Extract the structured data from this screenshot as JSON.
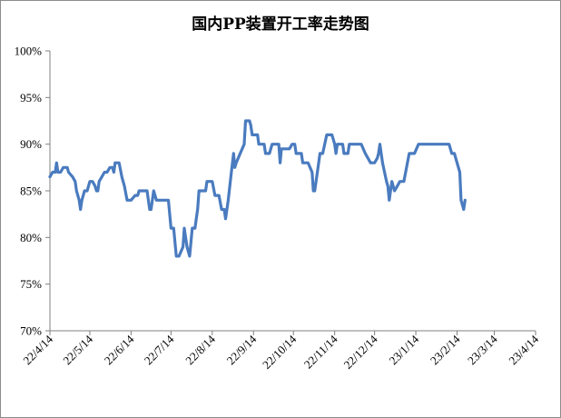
{
  "chart_data": {
    "type": "line",
    "title": "国内PP装置开工率走势图",
    "xlabel": "",
    "ylabel": "",
    "ylim": [
      70,
      100
    ],
    "y_ticks": [
      "70%",
      "75%",
      "80%",
      "85%",
      "90%",
      "95%",
      "100%"
    ],
    "x_ticks": [
      "22/4/14",
      "22/5/14",
      "22/6/14",
      "22/7/14",
      "22/8/14",
      "22/9/14",
      "22/10/14",
      "22/11/14",
      "22/12/14",
      "23/1/14",
      "23/2/14",
      "23/3/14",
      "23/4/14"
    ],
    "grid": false,
    "legend": "none",
    "line_color": "#4a7bbf",
    "series": [
      {
        "points": [
          [
            "22/4/14",
            86.5
          ],
          [
            "22/4/16",
            87.0
          ],
          [
            "22/4/18",
            87.0
          ],
          [
            "22/4/19",
            88.0
          ],
          [
            "22/4/20",
            87.0
          ],
          [
            "22/4/22",
            87.0
          ],
          [
            "22/4/24",
            87.5
          ],
          [
            "22/4/27",
            87.5
          ],
          [
            "22/4/28",
            87.0
          ],
          [
            "22/5/1",
            86.5
          ],
          [
            "22/5/3",
            86.0
          ],
          [
            "22/5/4",
            85.0
          ],
          [
            "22/5/6",
            84.0
          ],
          [
            "22/5/7",
            83.0
          ],
          [
            "22/5/8",
            84.0
          ],
          [
            "22/5/10",
            85.0
          ],
          [
            "22/5/12",
            85.0
          ],
          [
            "22/5/14",
            86.0
          ],
          [
            "22/5/16",
            86.0
          ],
          [
            "22/5/18",
            85.5
          ],
          [
            "22/5/19",
            85.0
          ],
          [
            "22/5/20",
            85.0
          ],
          [
            "22/5/21",
            86.0
          ],
          [
            "22/5/23",
            86.5
          ],
          [
            "22/5/25",
            87.0
          ],
          [
            "22/5/27",
            87.0
          ],
          [
            "22/5/29",
            87.5
          ],
          [
            "22/5/31",
            87.5
          ],
          [
            "22/6/1",
            87.0
          ],
          [
            "22/6/2",
            88.0
          ],
          [
            "22/6/5",
            88.0
          ],
          [
            "22/6/7",
            86.5
          ],
          [
            "22/6/9",
            85.5
          ],
          [
            "22/6/11",
            84.0
          ],
          [
            "22/6/14",
            84.0
          ],
          [
            "22/6/17",
            84.5
          ],
          [
            "22/6/19",
            84.5
          ],
          [
            "22/6/20",
            85.0
          ],
          [
            "22/6/26",
            85.0
          ],
          [
            "22/6/28",
            83.0
          ],
          [
            "22/6/29",
            83.0
          ],
          [
            "22/7/1",
            85.0
          ],
          [
            "22/7/3",
            84.0
          ],
          [
            "22/7/12",
            84.0
          ],
          [
            "22/7/14",
            81.0
          ],
          [
            "22/7/16",
            81.0
          ],
          [
            "22/7/18",
            78.0
          ],
          [
            "22/7/20",
            78.0
          ],
          [
            "22/7/23",
            79.0
          ],
          [
            "22/7/24",
            81.0
          ],
          [
            "22/7/26",
            79.0
          ],
          [
            "22/7/28",
            78.0
          ],
          [
            "22/7/30",
            81.0
          ],
          [
            "22/8/1",
            81.0
          ],
          [
            "22/8/2",
            82.0
          ],
          [
            "22/8/3",
            83.0
          ],
          [
            "22/8/4",
            85.0
          ],
          [
            "22/8/9",
            85.0
          ],
          [
            "22/8/10",
            86.0
          ],
          [
            "22/8/14",
            86.0
          ],
          [
            "22/8/16",
            84.5
          ],
          [
            "22/8/19",
            84.5
          ],
          [
            "22/8/21",
            83.0
          ],
          [
            "22/8/23",
            83.0
          ],
          [
            "22/8/24",
            82.0
          ],
          [
            "22/8/26",
            84.0
          ],
          [
            "22/8/28",
            86.5
          ],
          [
            "22/8/30",
            89.0
          ],
          [
            "22/8/31",
            87.5
          ],
          [
            "22/9/1",
            88.0
          ],
          [
            "22/9/4",
            89.0
          ],
          [
            "22/9/7",
            90.0
          ],
          [
            "22/9/8",
            92.5
          ],
          [
            "22/9/11",
            92.5
          ],
          [
            "22/9/12",
            92.0
          ],
          [
            "22/9/13",
            91.0
          ],
          [
            "22/9/17",
            91.0
          ],
          [
            "22/9/18",
            90.0
          ],
          [
            "22/9/22",
            90.0
          ],
          [
            "22/9/23",
            89.0
          ],
          [
            "22/9/26",
            89.0
          ],
          [
            "22/9/28",
            90.0
          ],
          [
            "22/10/3",
            90.0
          ],
          [
            "22/10/4",
            88.0
          ],
          [
            "22/10/5",
            89.5
          ],
          [
            "22/10/11",
            89.5
          ],
          [
            "22/10/13",
            90.0
          ],
          [
            "22/10/15",
            90.0
          ],
          [
            "22/10/16",
            89.0
          ],
          [
            "22/10/20",
            89.0
          ],
          [
            "22/10/21",
            88.0
          ],
          [
            "22/10/25",
            88.0
          ],
          [
            "22/10/28",
            87.0
          ],
          [
            "22/10/29",
            85.0
          ],
          [
            "22/10/30",
            85.0
          ],
          [
            "22/11/1",
            87.0
          ],
          [
            "22/11/3",
            89.0
          ],
          [
            "22/11/5",
            89.0
          ],
          [
            "22/11/8",
            91.0
          ],
          [
            "22/11/12",
            91.0
          ],
          [
            "22/11/14",
            90.0
          ],
          [
            "22/11/15",
            89.0
          ],
          [
            "22/11/16",
            90.0
          ],
          [
            "22/11/20",
            90.0
          ],
          [
            "22/11/21",
            89.0
          ],
          [
            "22/11/24",
            89.0
          ],
          [
            "22/11/25",
            90.0
          ],
          [
            "22/12/4",
            90.0
          ],
          [
            "22/12/7",
            89.0
          ],
          [
            "22/12/11",
            88.0
          ],
          [
            "22/12/14",
            88.0
          ],
          [
            "22/12/16",
            88.5
          ],
          [
            "22/12/17",
            89.0
          ],
          [
            "22/12/18",
            90.0
          ],
          [
            "22/12/20",
            88.0
          ],
          [
            "22/12/23",
            86.0
          ],
          [
            "22/12/24",
            85.5
          ],
          [
            "22/12/25",
            84.0
          ],
          [
            "22/12/26",
            85.0
          ],
          [
            "22/12/27",
            86.0
          ],
          [
            "22/12/29",
            85.0
          ],
          [
            "22/12/31",
            85.5
          ],
          [
            "23/1/2",
            86.0
          ],
          [
            "23/1/5",
            86.0
          ],
          [
            "23/1/9",
            89.0
          ],
          [
            "23/1/13",
            89.0
          ],
          [
            "23/1/16",
            90.0
          ],
          [
            "23/2/8",
            90.0
          ],
          [
            "23/2/10",
            89.0
          ],
          [
            "23/2/12",
            89.0
          ],
          [
            "23/2/14",
            88.0
          ],
          [
            "23/2/16",
            87.0
          ],
          [
            "23/2/17",
            84.0
          ],
          [
            "23/2/19",
            83.0
          ],
          [
            "23/2/20",
            84.0
          ]
        ]
      }
    ]
  }
}
